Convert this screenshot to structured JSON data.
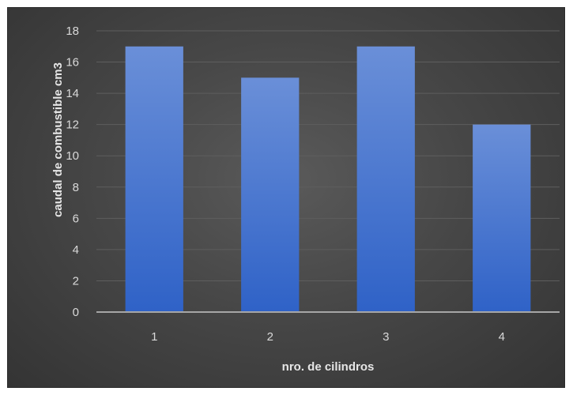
{
  "chart_data": {
    "type": "bar",
    "categories": [
      "1",
      "2",
      "3",
      "4"
    ],
    "values": [
      17,
      15,
      17,
      12
    ],
    "title": "",
    "xlabel": "nro. de cilindros",
    "ylabel": "caudal de combustible cm3",
    "ylim": [
      0,
      18
    ],
    "yticks": [
      0,
      2,
      4,
      6,
      8,
      10,
      12,
      14,
      16,
      18
    ],
    "grid": true,
    "legend": "none",
    "colors": {
      "bar_top": "#6a8fd8",
      "bar_bottom": "#2f62c7",
      "gridline": "#5e5e5e",
      "axis_line": "#a6a6a6",
      "background": "#474747"
    }
  }
}
